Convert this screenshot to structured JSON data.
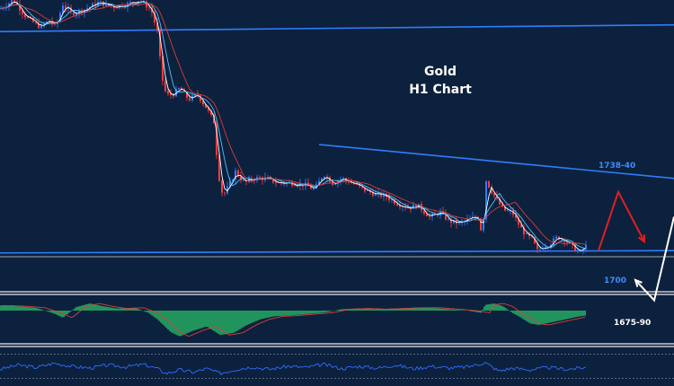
{
  "chart_data": {
    "type": "candlestick",
    "title": "Gold",
    "subtitle": "H1 Chart",
    "ylim": [
      1684,
      1812
    ],
    "resistance_label": "1738-40",
    "support_label": "1700",
    "target_label": "1675-90",
    "trendline_upper": {
      "x_start": 355,
      "x_end": 750,
      "y_start": 1748,
      "y_end": 1733
    },
    "trendline_top": {
      "x_start": 0,
      "x_end": 750,
      "y_start": 1798,
      "y_end": 1801
    },
    "support_line": {
      "x_start": 0,
      "x_end": 750,
      "y_start": 1700,
      "y_end": 1701
    },
    "price_path": [
      [
        0,
        1808
      ],
      [
        15,
        1812
      ],
      [
        30,
        1804
      ],
      [
        45,
        1800
      ],
      [
        55,
        1803
      ],
      [
        62,
        1800
      ],
      [
        70,
        1810
      ],
      [
        80,
        1806
      ],
      [
        95,
        1808
      ],
      [
        110,
        1811
      ],
      [
        125,
        1809
      ],
      [
        140,
        1810
      ],
      [
        155,
        1812
      ],
      [
        168,
        1808
      ],
      [
        175,
        1798
      ],
      [
        180,
        1778
      ],
      [
        185,
        1770
      ],
      [
        192,
        1770
      ],
      [
        200,
        1773
      ],
      [
        210,
        1768
      ],
      [
        220,
        1770
      ],
      [
        230,
        1764
      ],
      [
        238,
        1758
      ],
      [
        243,
        1735
      ],
      [
        248,
        1725
      ],
      [
        255,
        1730
      ],
      [
        262,
        1736
      ],
      [
        272,
        1731
      ],
      [
        282,
        1733
      ],
      [
        295,
        1733
      ],
      [
        310,
        1731
      ],
      [
        325,
        1731
      ],
      [
        340,
        1730
      ],
      [
        350,
        1728
      ],
      [
        360,
        1735
      ],
      [
        370,
        1731
      ],
      [
        380,
        1733
      ],
      [
        392,
        1731
      ],
      [
        405,
        1728
      ],
      [
        418,
        1726
      ],
      [
        430,
        1725
      ],
      [
        442,
        1722
      ],
      [
        455,
        1720
      ],
      [
        465,
        1721
      ],
      [
        478,
        1716
      ],
      [
        490,
        1718
      ],
      [
        500,
        1714
      ],
      [
        512,
        1713
      ],
      [
        522,
        1715
      ],
      [
        532,
        1716
      ],
      [
        537,
        1707
      ],
      [
        540,
        1733
      ],
      [
        546,
        1728
      ],
      [
        552,
        1724
      ],
      [
        560,
        1719
      ],
      [
        570,
        1718
      ],
      [
        578,
        1712
      ],
      [
        585,
        1708
      ],
      [
        592,
        1706
      ],
      [
        598,
        1701
      ],
      [
        605,
        1703
      ],
      [
        612,
        1704
      ],
      [
        620,
        1707
      ],
      [
        628,
        1706
      ],
      [
        636,
        1703
      ],
      [
        645,
        1700
      ],
      [
        652,
        1703
      ]
    ],
    "projection_red": [
      [
        666,
        1701
      ],
      [
        688,
        1727
      ],
      [
        717,
        1705
      ]
    ],
    "projection_white": [
      [
        750,
        1716
      ],
      [
        728,
        1679
      ],
      [
        707,
        1688
      ]
    ],
    "macd_histogram": [
      [
        0,
        7
      ],
      [
        20,
        6
      ],
      [
        40,
        4
      ],
      [
        60,
        -4
      ],
      [
        70,
        -10
      ],
      [
        85,
        5
      ],
      [
        100,
        10
      ],
      [
        115,
        6
      ],
      [
        130,
        3
      ],
      [
        150,
        4
      ],
      [
        165,
        -3
      ],
      [
        175,
        -12
      ],
      [
        190,
        -30
      ],
      [
        200,
        -36
      ],
      [
        215,
        -28
      ],
      [
        230,
        -22
      ],
      [
        245,
        -34
      ],
      [
        260,
        -31
      ],
      [
        275,
        -20
      ],
      [
        290,
        -12
      ],
      [
        305,
        -8
      ],
      [
        320,
        -7
      ],
      [
        340,
        -5
      ],
      [
        360,
        -3
      ],
      [
        380,
        2
      ],
      [
        400,
        3
      ],
      [
        420,
        2
      ],
      [
        440,
        3
      ],
      [
        460,
        4
      ],
      [
        480,
        4
      ],
      [
        500,
        2
      ],
      [
        520,
        0
      ],
      [
        535,
        -3
      ],
      [
        540,
        8
      ],
      [
        550,
        10
      ],
      [
        560,
        6
      ],
      [
        570,
        -3
      ],
      [
        580,
        -10
      ],
      [
        590,
        -18
      ],
      [
        600,
        -20
      ],
      [
        615,
        -16
      ],
      [
        630,
        -12
      ],
      [
        645,
        -8
      ],
      [
        652,
        -7
      ]
    ],
    "rsi": [
      [
        0,
        45
      ],
      [
        20,
        52
      ],
      [
        40,
        48
      ],
      [
        60,
        55
      ],
      [
        80,
        50
      ],
      [
        100,
        47
      ],
      [
        120,
        52
      ],
      [
        140,
        49
      ],
      [
        160,
        53
      ],
      [
        175,
        46
      ],
      [
        185,
        38
      ],
      [
        200,
        44
      ],
      [
        215,
        40
      ],
      [
        230,
        46
      ],
      [
        245,
        38
      ],
      [
        260,
        44
      ],
      [
        280,
        49
      ],
      [
        300,
        45
      ],
      [
        320,
        50
      ],
      [
        340,
        48
      ],
      [
        360,
        53
      ],
      [
        380,
        46
      ],
      [
        400,
        50
      ],
      [
        420,
        47
      ],
      [
        440,
        52
      ],
      [
        460,
        46
      ],
      [
        480,
        50
      ],
      [
        500,
        47
      ],
      [
        520,
        49
      ],
      [
        540,
        56
      ],
      [
        555,
        42
      ],
      [
        570,
        47
      ],
      [
        590,
        44
      ],
      [
        610,
        48
      ],
      [
        630,
        45
      ],
      [
        652,
        48
      ]
    ]
  }
}
